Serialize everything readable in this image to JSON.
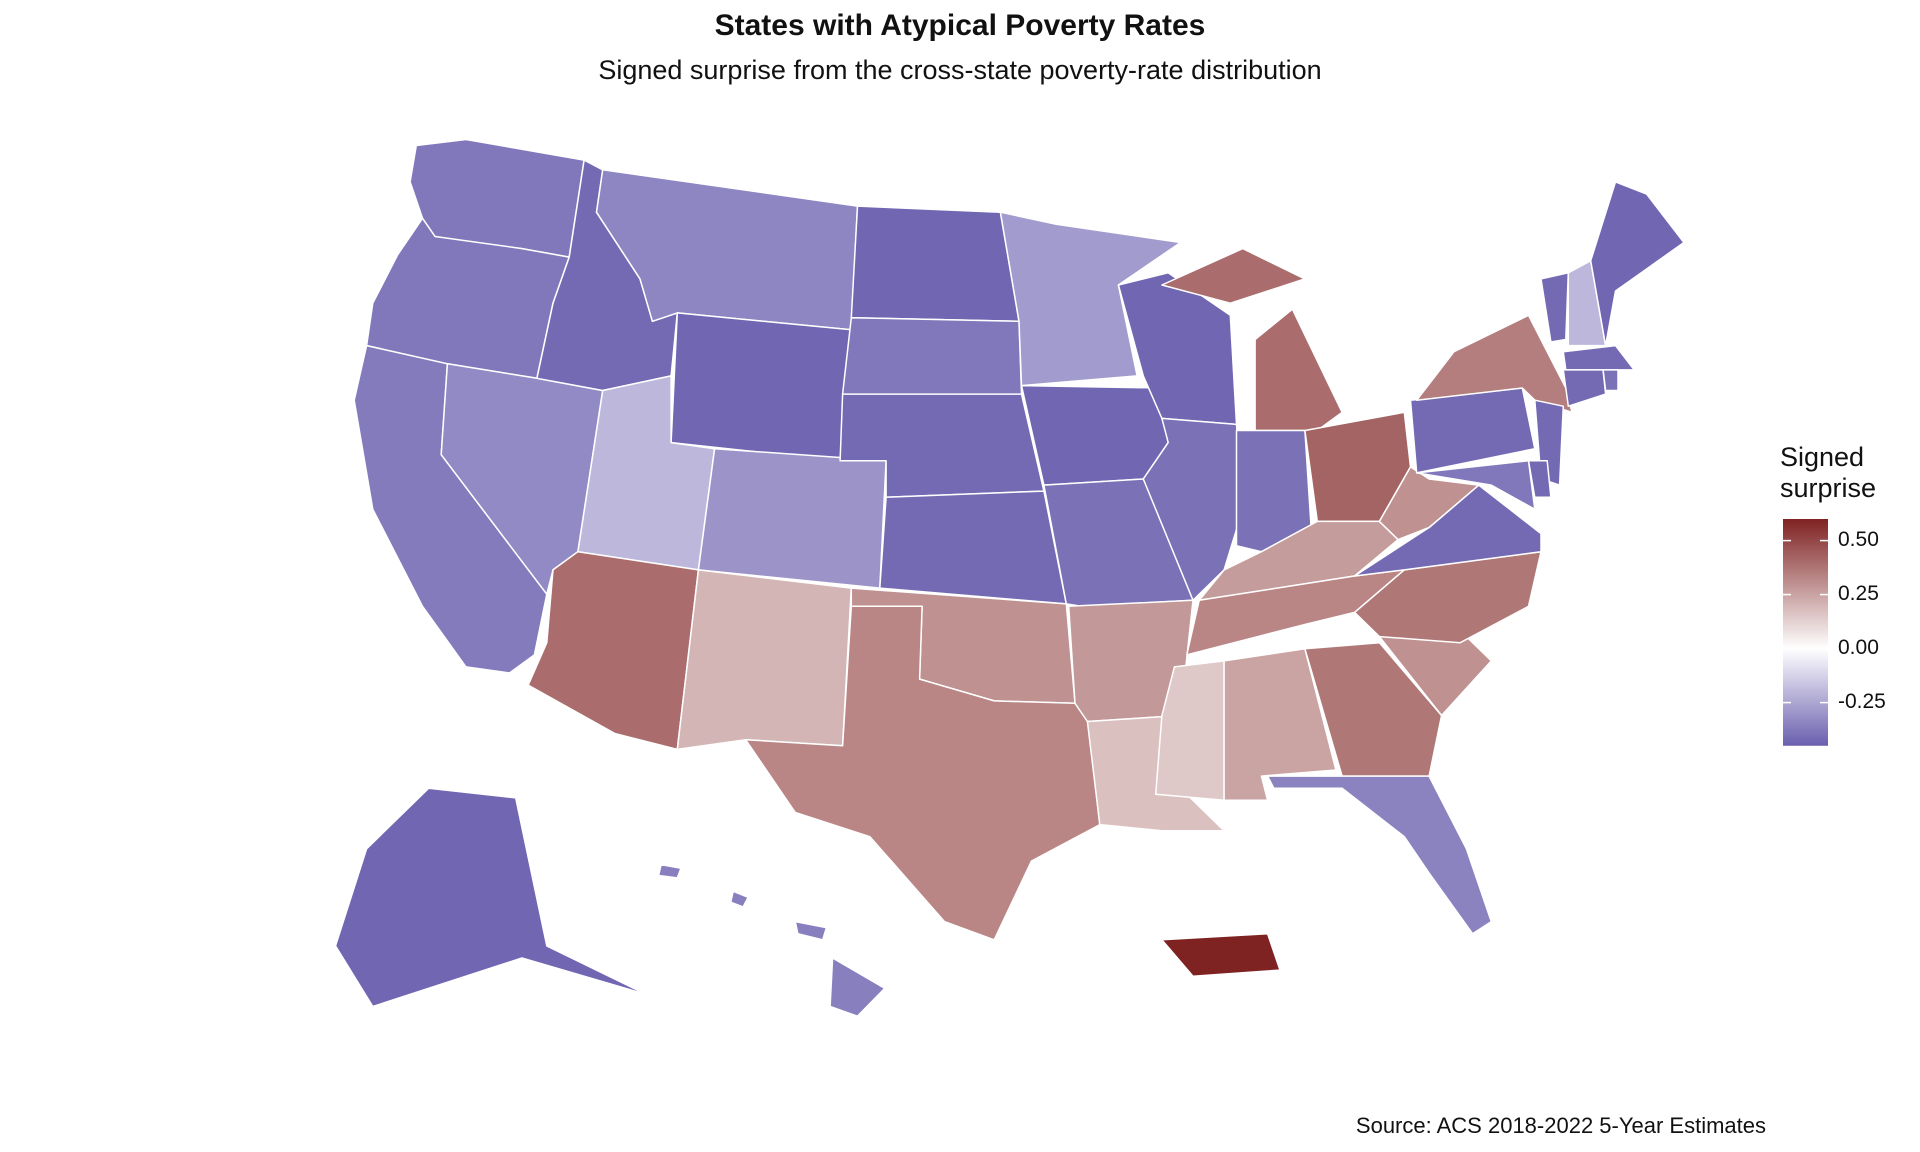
{
  "chart_data": {
    "type": "choropleth",
    "title": "States with Atypical Poverty Rates",
    "subtitle": "Signed surprise from the cross-state poverty-rate distribution",
    "source": "Source: ACS 2018-2022 5-Year Estimates",
    "legend_title": "Signed surprise",
    "values": [
      -0.38,
      -0.38,
      -0.37,
      -0.33,
      -0.42,
      -0.34,
      -0.43,
      -0.2,
      -0.3,
      0.4,
      0.2,
      -0.43,
      -0.38,
      -0.42,
      -0.42,
      0.3,
      0.33,
      -0.28,
      -0.43,
      -0.4,
      0.28,
      0.17,
      -0.43,
      -0.4,
      0.4,
      -0.4,
      0.42,
      0.27,
      0.33,
      0.15,
      0.25,
      0.37,
      -0.35,
      0.3,
      0.37,
      -0.42,
      0.3,
      -0.42,
      0.35,
      -0.42,
      -0.2,
      -0.43,
      -0.42,
      -0.42,
      -0.4,
      -0.42,
      -0.42,
      -0.38,
      -0.43,
      -0.36,
      0.6
    ],
    "clim": [
      -0.45,
      0.6
    ],
    "ticks": [
      -0.25,
      {
        "value": 0,
        "label": "0.00"
      },
      0.25,
      {
        "value": 0.5,
        "label": "0.50"
      }
    ],
    "color_low": "#6a5fae",
    "color_mid": "#ffffff",
    "color_high": "#7f2222"
  }
}
